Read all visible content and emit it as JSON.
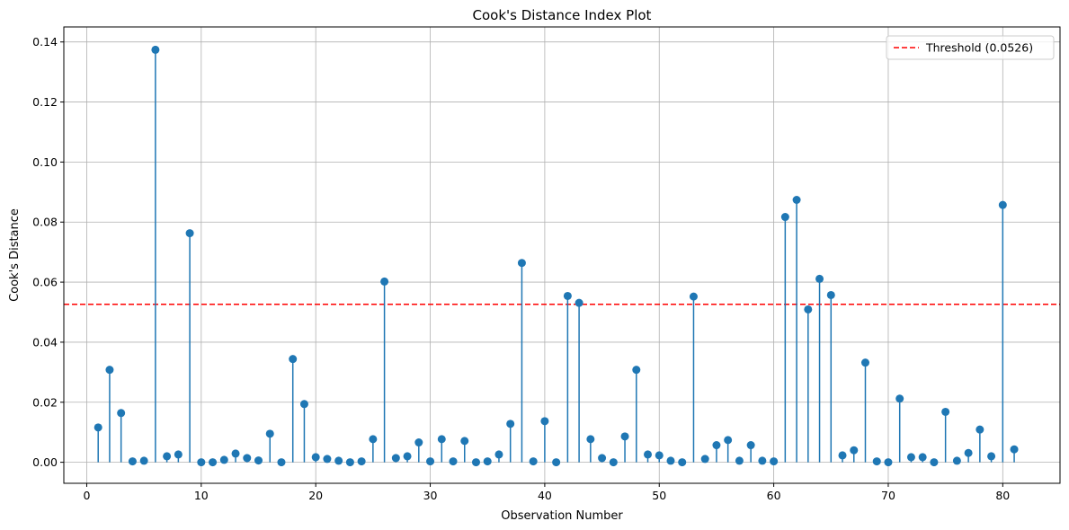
{
  "chart_data": {
    "type": "stem",
    "title": "Cook's Distance Index Plot",
    "xlabel": "Observation Number",
    "ylabel": "Cook's Distance",
    "xlim": [
      -2.0,
      85.0
    ],
    "ylim": [
      -0.007,
      0.145
    ],
    "xticks": [
      0,
      10,
      20,
      30,
      40,
      50,
      60,
      70,
      80
    ],
    "xtick_labels": [
      "0",
      "10",
      "20",
      "30",
      "40",
      "50",
      "60",
      "70",
      "80"
    ],
    "yticks": [
      0.0,
      0.02,
      0.04,
      0.06,
      0.08,
      0.1,
      0.12,
      0.14
    ],
    "ytick_labels": [
      "0.00",
      "0.02",
      "0.04",
      "0.06",
      "0.08",
      "0.10",
      "0.12",
      "0.14"
    ],
    "grid": true,
    "legend_position": "top-right",
    "colors": {
      "stem": "#1f77b4",
      "threshold": "#ff0000",
      "grid": "#b0b0b0"
    },
    "threshold": {
      "name": "Threshold (0.0526)",
      "value": 0.0526
    },
    "x": [
      1,
      2,
      3,
      4,
      5,
      6,
      7,
      8,
      9,
      10,
      11,
      12,
      13,
      14,
      15,
      16,
      17,
      18,
      19,
      20,
      21,
      22,
      23,
      24,
      25,
      26,
      27,
      28,
      29,
      30,
      31,
      32,
      33,
      34,
      35,
      36,
      37,
      38,
      39,
      40,
      41,
      42,
      43,
      44,
      45,
      46,
      47,
      48,
      49,
      50,
      51,
      52,
      53,
      54,
      55,
      56,
      57,
      58,
      59,
      60,
      61,
      62,
      63,
      64,
      65,
      66,
      67,
      68,
      69,
      70,
      71,
      72,
      73,
      74,
      75,
      76,
      77,
      78,
      79,
      80,
      81
    ],
    "values": [
      0.0116,
      0.0308,
      0.0164,
      0.0003,
      0.0005,
      0.1374,
      0.002,
      0.0026,
      0.0763,
      0.0,
      0.0,
      0.0008,
      0.0029,
      0.0014,
      0.0006,
      0.0095,
      0.0,
      0.0344,
      0.0194,
      0.0017,
      0.0011,
      0.0005,
      0.0,
      0.0003,
      0.0077,
      0.0602,
      0.0014,
      0.002,
      0.0066,
      0.0003,
      0.0077,
      0.0003,
      0.0071,
      0.0,
      0.0003,
      0.0026,
      0.0128,
      0.0664,
      0.0003,
      0.0137,
      0.0,
      0.0554,
      0.0531,
      0.0077,
      0.0014,
      0.0,
      0.0086,
      0.0308,
      0.0026,
      0.0023,
      0.0005,
      0.0,
      0.0552,
      0.0011,
      0.0057,
      0.0074,
      0.0005,
      0.0057,
      0.0005,
      0.0003,
      0.0817,
      0.0874,
      0.0509,
      0.0611,
      0.0557,
      0.0023,
      0.004,
      0.0332,
      0.0003,
      0.0,
      0.0212,
      0.0017,
      0.0017,
      0.0,
      0.0168,
      0.0005,
      0.0031,
      0.0109,
      0.002,
      0.0857,
      0.0043
    ]
  }
}
